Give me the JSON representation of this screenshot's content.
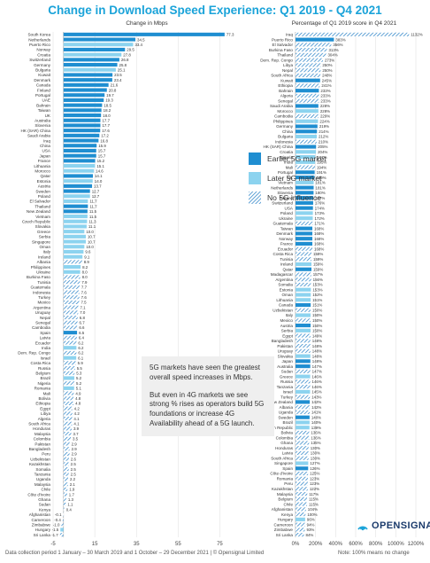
{
  "chart_data": [
    {
      "type": "bar",
      "title": "Change in Download Speed Experience: Q1 2019 - Q4 2021",
      "subtitle": "Change in Mbps",
      "xlim": [
        -5,
        85
      ],
      "xticks": [
        -5,
        15,
        35,
        55,
        75
      ],
      "categories": [
        "South Korea",
        "Netherlands",
        "Puerto Rico",
        "Norway",
        "Croatia",
        "Switzerland",
        "Germany",
        "Bulgaria",
        "Kuwait",
        "Denmark",
        "Canada",
        "Finland",
        "Portugal",
        "UAE",
        "Bahrain",
        "Taiwan",
        "UK",
        "Australia",
        "Slovenia",
        "HK (SAR) China",
        "Saudi Arabia",
        "Iraq",
        "China",
        "USA",
        "Japan",
        "France",
        "Lithuania",
        "Morocco",
        "Qatar",
        "Estonia",
        "Austria",
        "Sweden",
        "Poland",
        "El Salvador",
        "Thailand",
        "New Zealand",
        "Vietnam",
        "Czech Republic",
        "Slovakia",
        "Greece",
        "Serbia",
        "Singapore",
        "Oman",
        "Italy",
        "Ireland",
        "Albania",
        "Philippines",
        "Ukraine",
        "Burkina Faso",
        "Tunisia",
        "Guatemala",
        "Indonesia",
        "Turkey",
        "Mexico",
        "Argentina",
        "Uruguay",
        "Nepal",
        "Senegal",
        "Cambodia",
        "Spain",
        "Latvia",
        "Ecuador",
        "India",
        "Dem. Rep. Congo",
        "Israel",
        "Costa Rica",
        "Russia",
        "Belgium",
        "Brazil",
        "Nigeria",
        "Romania",
        "Mali",
        "Bolivia",
        "Ethiopia",
        "Egypt",
        "Libya",
        "Algeria",
        "South Africa",
        "Honduras",
        "Malaysia",
        "Colombia",
        "Pakistan",
        "Bangladesh",
        "Peru",
        "Uzbekistan",
        "Kazakhstan",
        "Somalia",
        "Tanzania",
        "Uganda",
        "Malaysia",
        "Chile",
        "Côte d'Ivoire",
        "Ghana",
        "Sudan",
        "Kenya",
        "Afghanistan",
        "Cameroon",
        "Zimbabwe",
        "Hungary",
        "Sri Lanka"
      ],
      "values": [
        77.3,
        34.5,
        33.4,
        29.5,
        27.8,
        26.8,
        25.8,
        25.1,
        23.5,
        23.4,
        21.6,
        20.8,
        19.7,
        19.3,
        18.5,
        18.2,
        18.0,
        17.7,
        17.7,
        17.6,
        17.2,
        16.8,
        15.9,
        15.7,
        15.7,
        15.2,
        15.1,
        14.6,
        14.1,
        14.0,
        13.7,
        12.7,
        12.7,
        11.7,
        11.7,
        11.5,
        11.5,
        11.3,
        11.1,
        10.0,
        10.7,
        10.7,
        10.0,
        9.6,
        9.1,
        8.9,
        8.2,
        8.0,
        8.0,
        7.9,
        7.7,
        7.6,
        7.6,
        7.5,
        7.1,
        7.0,
        6.8,
        6.7,
        6.6,
        6.5,
        6.4,
        6.2,
        6.2,
        6.2,
        6.1,
        5.9,
        5.5,
        5.3,
        5.2,
        5.2,
        5.1,
        4.9,
        4.8,
        4.8,
        4.2,
        4.2,
        4.1,
        4.1,
        3.9,
        3.7,
        3.5,
        2.9,
        2.9,
        2.9,
        2.6,
        2.5,
        2.5,
        2.5,
        2.2,
        2.1,
        1.9,
        1.7,
        1.3,
        1.1,
        0.4,
        -0.1,
        -0.4,
        -1.0,
        -1.5,
        -1.7
      ],
      "groups": [
        "e",
        "e",
        "l",
        "e",
        "l",
        "e",
        "e",
        "l",
        "e",
        "e",
        "e",
        "e",
        "e",
        "e",
        "e",
        "e",
        "e",
        "e",
        "e",
        "e",
        "e",
        "e",
        "e",
        "e",
        "e",
        "e",
        "l",
        "l",
        "e",
        "l",
        "e",
        "e",
        "l",
        "l",
        "e",
        "e",
        "l",
        "l",
        "l",
        "l",
        "l",
        "l",
        "l",
        "l",
        "l",
        "n",
        "l",
        "l",
        "n",
        "n",
        "n",
        "n",
        "n",
        "n",
        "n",
        "n",
        "n",
        "n",
        "n",
        "e",
        "n",
        "n",
        "l",
        "n",
        "l",
        "n",
        "n",
        "n",
        "l",
        "n",
        "l",
        "n",
        "n",
        "n",
        "n",
        "n",
        "n",
        "n",
        "n",
        "n",
        "n",
        "n",
        "n",
        "n",
        "n",
        "n",
        "n",
        "n",
        "n",
        "n",
        "n",
        "n",
        "n",
        "n",
        "n",
        "n",
        "n",
        "n",
        "l",
        "n"
      ]
    },
    {
      "type": "bar",
      "subtitle": "Percentage of Q1 2019 score in Q4 2021",
      "xlim": [
        0,
        1200
      ],
      "xticks": [
        "0%",
        "200%",
        "400%",
        "600%",
        "800%",
        "1000%",
        "1200%"
      ],
      "xtick_values": [
        0,
        200,
        400,
        600,
        800,
        1000,
        1200
      ],
      "categories": [
        "Iraq",
        "Puerto Rico",
        "El Salvador",
        "Burkina Faso",
        "Thailand",
        "Dem. Rep. Congo",
        "Libya",
        "Nepal",
        "South Africa",
        "Kuwait",
        "Ethiopia",
        "Bahrain",
        "Algeria",
        "Senegal",
        "Saudi Arabia",
        "Morocco",
        "Cambodia",
        "Philippines",
        "Germany",
        "China",
        "Bulgaria",
        "Indonesia",
        "HK (SAR) China",
        "Croatia",
        "Nigeria",
        "India",
        "Mali",
        "Portugal",
        "UK",
        "Vietnam",
        "Netherlands",
        "Slovenia",
        "Finland",
        "Switzerland",
        "USA",
        "Poland",
        "Ukraine",
        "Guatemala",
        "Taiwan",
        "Denmark",
        "Norway",
        "France",
        "Ecuador",
        "Costa Rica",
        "Tunisia",
        "Ireland",
        "Qatar",
        "Madagascar",
        "Argentina",
        "Somalia",
        "Estonia",
        "Oman",
        "Lithuania",
        "Canada",
        "Uzbekistan",
        "Italy",
        "Mexico",
        "Austria",
        "Serbia",
        "Egypt",
        "Bangladesh",
        "Pakistan",
        "Uruguay",
        "Slovakia",
        "Japan",
        "Australia",
        "Sudan",
        "Greece",
        "Russia",
        "Tanzania",
        "Israel",
        "Turkey",
        "New Zealand",
        "Albania",
        "Uganda",
        "Sweden",
        "Brazil",
        "Czech Republic",
        "Bolivia",
        "Colombia",
        "Ghana",
        "Honduras",
        "Latvia",
        "South Africa",
        "Singapore",
        "Spain",
        "Côte d'Ivoire",
        "Romania",
        "Peru",
        "Kazakhstan",
        "Malaysia",
        "Belgium",
        "Chile",
        "Afghanistan",
        "Kenya",
        "Hungary",
        "Cameroon",
        "Zimbabwe",
        "Sri Lanka"
      ],
      "values": [
        1132,
        383,
        356,
        313,
        304,
        273,
        250,
        250,
        248,
        245,
        241,
        233,
        233,
        233,
        228,
        228,
        229,
        224,
        219,
        214,
        212,
        210,
        205,
        204,
        197,
        195,
        194,
        191,
        189,
        181,
        181,
        180,
        177,
        176,
        174,
        173,
        172,
        171,
        168,
        168,
        168,
        168,
        168,
        159,
        159,
        159,
        159,
        157,
        156,
        153,
        153,
        152,
        151,
        151,
        150,
        150,
        150,
        150,
        150,
        149,
        148,
        148,
        148,
        148,
        148,
        147,
        147,
        146,
        146,
        146,
        145,
        143,
        142,
        142,
        141,
        140,
        140,
        139,
        136,
        136,
        135,
        130,
        130,
        130,
        127,
        126,
        125,
        123,
        123,
        122,
        117,
        115,
        115,
        104,
        100,
        96,
        94,
        93,
        84
      ],
      "labels": [
        "1132%",
        "383%",
        "356%",
        "313%",
        "304%",
        "273%",
        "250%",
        "250%",
        "248%",
        "245%",
        "241%",
        "233%",
        "233%",
        "233%",
        "228%",
        "228%",
        "229%",
        "224%",
        "219%",
        "214%",
        "212%",
        "210%",
        "205%",
        "204%",
        "197%",
        "195%",
        "194%",
        "191%",
        "189%",
        "181%",
        "181%",
        "180%",
        "177%",
        "176%",
        "174%",
        "173%",
        "172%",
        "171%",
        "168%",
        "168%",
        "168%",
        "168%",
        "168%",
        "159%",
        "159%",
        "159%",
        "159%",
        "157%",
        "156%",
        "153%",
        "153%",
        "152%",
        "151%",
        "151%",
        "150%",
        "150%",
        "150%",
        "150%",
        "150%",
        "149%",
        "148%",
        "148%",
        "148%",
        "148%",
        "148%",
        "147%",
        "147%",
        "146%",
        "146%",
        "146%",
        "145%",
        "143%",
        "142%",
        "142%",
        "141%",
        "140%",
        "140%",
        "139%",
        "136%",
        "136%",
        "135%",
        "130%",
        "130%",
        "130%",
        "127%",
        "126%",
        "125%",
        "123%",
        "123%",
        "122%",
        "117%",
        "115%",
        "115%",
        "104%",
        "100%",
        "96%",
        "94%",
        "93%",
        "84%"
      ],
      "groups": [
        "n",
        "e",
        "n",
        "n",
        "n",
        "n",
        "n",
        "n",
        "n",
        "e",
        "n",
        "e",
        "n",
        "n",
        "e",
        "l",
        "n",
        "l",
        "e",
        "e",
        "l",
        "n",
        "e",
        "l",
        "l",
        "l",
        "n",
        "e",
        "e",
        "l",
        "e",
        "e",
        "e",
        "e",
        "e",
        "l",
        "l",
        "n",
        "e",
        "e",
        "e",
        "e",
        "n",
        "n",
        "n",
        "l",
        "e",
        "n",
        "n",
        "n",
        "l",
        "l",
        "l",
        "e",
        "n",
        "l",
        "n",
        "e",
        "l",
        "n",
        "n",
        "n",
        "n",
        "l",
        "e",
        "e",
        "n",
        "l",
        "n",
        "n",
        "l",
        "n",
        "e",
        "n",
        "n",
        "e",
        "l",
        "l",
        "n",
        "n",
        "n",
        "n",
        "n",
        "n",
        "l",
        "e",
        "n",
        "n",
        "n",
        "n",
        "n",
        "n",
        "n",
        "n",
        "n",
        "l",
        "n",
        "n",
        "n"
      ]
    }
  ],
  "legend": {
    "earlier": "Earlier 5G market",
    "later": "Later 5G market",
    "none": "No 5G influence"
  },
  "colors": {
    "earlier": "#1f8ed1",
    "later": "#8cd3ef",
    "hatch": "#1f7cc4",
    "title": "#1aa3d9"
  },
  "annotation": {
    "p1": "5G markets have seen the greatest overall speed increases in Mbps.",
    "p2": "But even in 4G markets we see strong % rises as operators build 5G foundations or increase 4G Availability ahead of a 5G launch."
  },
  "logo": "OPENSIGNAL",
  "footnote": "Data collection period 1 January – 30 March 2019 and 1 October – 29 December 2021 | © Opensignal Limited",
  "note": "Note: 100% means no change"
}
